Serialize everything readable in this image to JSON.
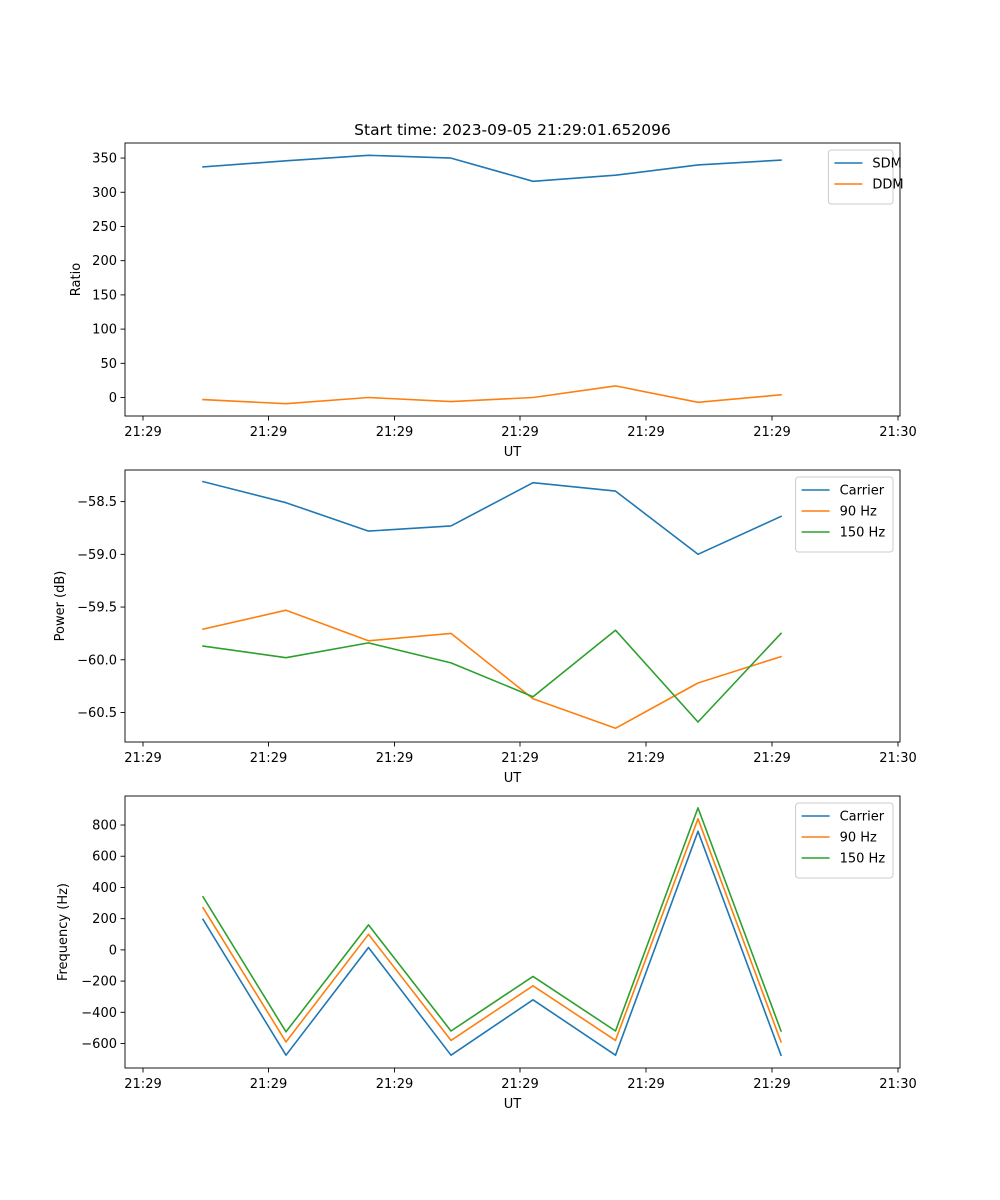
{
  "figure": {
    "title": "Start time: 2023-09-05 21:29:01.652096"
  },
  "chart_data": [
    {
      "type": "line",
      "title": "Start time: 2023-09-05 21:29:01.652096",
      "xlabel": "UT",
      "ylabel": "Ratio",
      "x_tick_labels": [
        "21:29",
        "21:29",
        "21:29",
        "21:29",
        "21:29",
        "21:29",
        "21:30"
      ],
      "ylim": [
        -27,
        372
      ],
      "yticks": [
        0,
        50,
        100,
        150,
        200,
        250,
        300,
        350
      ],
      "ytick_labels": [
        "0",
        "50",
        "100",
        "150",
        "200",
        "250",
        "300",
        "350"
      ],
      "legend_position": "upper-right",
      "series": [
        {
          "name": "SDM",
          "color": "#1f77b4",
          "values": [
            337,
            346,
            354,
            350,
            316,
            325,
            340,
            347
          ]
        },
        {
          "name": "DDM",
          "color": "#ff7f0e",
          "values": [
            -3,
            -9,
            0,
            -6,
            0,
            17,
            -7,
            4
          ]
        }
      ]
    },
    {
      "type": "line",
      "title": "",
      "xlabel": "UT",
      "ylabel": "Power (dB)",
      "x_tick_labels": [
        "21:29",
        "21:29",
        "21:29",
        "21:29",
        "21:29",
        "21:29",
        "21:30"
      ],
      "ylim": [
        -60.78,
        -58.2
      ],
      "yticks": [
        -58.5,
        -59.0,
        -59.5,
        -60.0,
        -60.5
      ],
      "ytick_labels": [
        "−58.5",
        "−59.0",
        "−59.5",
        "−60.0",
        "−60.5"
      ],
      "legend_position": "upper-right",
      "series": [
        {
          "name": "Carrier",
          "color": "#1f77b4",
          "values": [
            -58.31,
            -58.51,
            -58.78,
            -58.73,
            -58.32,
            -58.4,
            -59.0,
            -58.64
          ]
        },
        {
          "name": "90 Hz",
          "color": "#ff7f0e",
          "values": [
            -59.71,
            -59.53,
            -59.82,
            -59.75,
            -60.37,
            -60.65,
            -60.22,
            -59.97
          ]
        },
        {
          "name": "150 Hz",
          "color": "#2ca02c",
          "values": [
            -59.87,
            -59.98,
            -59.84,
            -60.03,
            -60.35,
            -59.72,
            -60.59,
            -59.75
          ]
        }
      ]
    },
    {
      "type": "line",
      "title": "",
      "xlabel": "UT",
      "ylabel": "Frequency (Hz)",
      "x_tick_labels": [
        "21:29",
        "21:29",
        "21:29",
        "21:29",
        "21:29",
        "21:29",
        "21:30"
      ],
      "ylim": [
        -757,
        986
      ],
      "yticks": [
        -600,
        -400,
        -200,
        0,
        200,
        400,
        600,
        800
      ],
      "ytick_labels": [
        "−600",
        "−400",
        "−200",
        "0",
        "200",
        "400",
        "600",
        "800"
      ],
      "legend_position": "upper-right",
      "series": [
        {
          "name": "Carrier",
          "color": "#1f77b4",
          "values": [
            195,
            -675,
            15,
            -675,
            -320,
            -675,
            760,
            -675
          ]
        },
        {
          "name": "90 Hz",
          "color": "#ff7f0e",
          "values": [
            270,
            -590,
            100,
            -580,
            -230,
            -580,
            840,
            -590
          ]
        },
        {
          "name": "150 Hz",
          "color": "#2ca02c",
          "values": [
            340,
            -525,
            160,
            -520,
            -170,
            -520,
            910,
            -520
          ]
        }
      ]
    }
  ]
}
